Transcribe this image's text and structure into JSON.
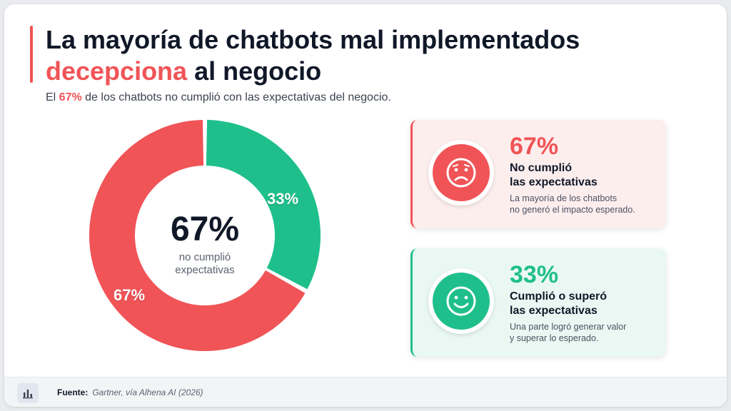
{
  "header": {
    "title_line1": "La mayoría de chatbots mal implementados",
    "title_line2_highlight": "decepciona",
    "title_line2_rest": " al negocio",
    "subtitle_before": "El ",
    "subtitle_highlight": "67%",
    "subtitle_after": " de los chatbots no cumplió con las expectativas del negocio."
  },
  "chart_data": {
    "type": "pie",
    "donut": true,
    "categories": [
      "No cumplió las expectativas",
      "Cumplió o superó las expectativas"
    ],
    "values": [
      67,
      33
    ],
    "value_labels": [
      "67%",
      "33%"
    ],
    "colors": [
      "#f05457",
      "#1fbf8b"
    ],
    "center_value": "67%",
    "center_label_line1": "no cumplió",
    "center_label_line2": "expectativas"
  },
  "cards": [
    {
      "pct": "67%",
      "head_line1": "No cumplió",
      "head_line2": "las expectativas",
      "desc_line1": "La mayoría de los chatbots",
      "desc_line2": "no generó el impacto esperado.",
      "icon": "sad-face-icon",
      "color": "#f05457"
    },
    {
      "pct": "33%",
      "head_line1": "Cumplió o superó",
      "head_line2": "las expectativas",
      "desc_line1": "Una parte logró generar valor",
      "desc_line2": "y superar lo esperado.",
      "icon": "smile-face-icon",
      "color": "#1fbf8b"
    }
  ],
  "footer": {
    "label": "Fuente:",
    "source": "Gartner, vía Alhena AI (2026)",
    "icon": "bar-chart-icon"
  }
}
